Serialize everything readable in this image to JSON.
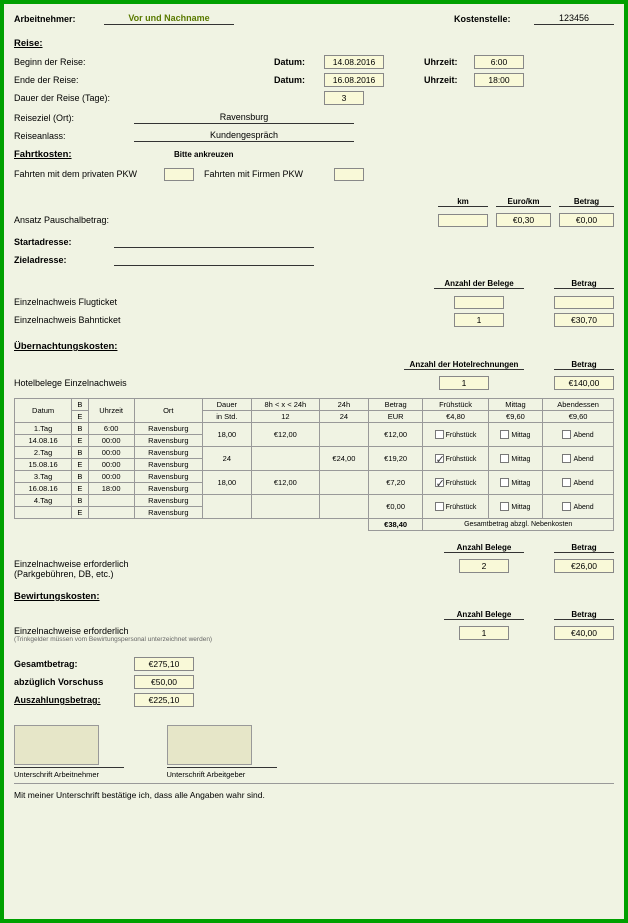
{
  "header": {
    "employee_label": "Arbeitnehmer:",
    "employee_name": "Vor und Nachname",
    "costcenter_label": "Kostenstelle:",
    "costcenter_value": "123456"
  },
  "reise": {
    "section": "Reise:",
    "begin_label": "Beginn der Reise:",
    "end_label": "Ende der Reise:",
    "datum_label": "Datum:",
    "uhrzeit_label": "Uhrzeit:",
    "begin_date": "14.08.2016",
    "begin_time": "6:00",
    "end_date": "16.08.2016",
    "end_time": "18:00",
    "duration_label": "Dauer der Reise (Tage):",
    "duration_value": "3",
    "dest_label": "Reiseziel (Ort):",
    "dest_value": "Ravensburg",
    "reason_label": "Reiseanlass:",
    "reason_value": "Kundengespräch"
  },
  "fahrt": {
    "section": "Fahrtkosten:",
    "bitte": "Bitte ankreuzen",
    "privat": "Fahrten mit dem privaten PKW",
    "firma": "Fahrten mit Firmen PKW",
    "km_h": "km",
    "eurokm_h": "Euro/km",
    "betrag_h": "Betrag",
    "pauschal": "Ansatz Pauschalbetrag:",
    "km_v": "",
    "eurokm_v": "€0,30",
    "betrag_v": "€0,00",
    "start": "Startadresse:",
    "ziel": "Zieladresse:",
    "belege_h": "Anzahl der Belege",
    "flug": "Einzelnachweis Flugticket",
    "flug_n": "",
    "flug_b": "",
    "bahn": "Einzelnachweis Bahnticket",
    "bahn_n": "1",
    "bahn_b": "€30,70"
  },
  "uebern": {
    "section": "Übernachtungskosten:",
    "hotel_label": "Hotelbelege Einzelnachweis",
    "rech_h": "Anzahl der Hotelrechnungen",
    "betrag_h": "Betrag",
    "rech_v": "1",
    "betrag_v": "€140,00"
  },
  "table": {
    "headers": {
      "datum": "Datum",
      "be": "B",
      "be2": "E",
      "uhrzeit": "Uhrzeit",
      "ort": "Ort",
      "dauer": "Dauer",
      "b8": "8h < x < 24h",
      "b24": "24h",
      "betrag": "Betrag",
      "fruh": "Frühstück",
      "mittag": "Mittag",
      "abend": "Abendessen",
      "instd": "in Std.",
      "v12": "12",
      "v24": "24",
      "eur": "EUR",
      "e480": "€4,80",
      "e960a": "€9,60",
      "e960b": "€9,60"
    },
    "rows": [
      {
        "tag": "1.Tag",
        "date": "14.08.16",
        "b": "6:00",
        "e": "00:00",
        "ortb": "Ravensburg",
        "orte": "Ravensburg",
        "dauer": "18,00",
        "c8": "€12,00",
        "c24": "",
        "betrag": "€12,00",
        "f": false,
        "m": false,
        "a": false,
        "ml": "Mittag",
        "al": "Abend"
      },
      {
        "tag": "2.Tag",
        "date": "15.08.16",
        "b": "00:00",
        "e": "00:00",
        "ortb": "Ravensburg",
        "orte": "Ravensburg",
        "dauer": "24",
        "c8": "",
        "c24": "€24,00",
        "betrag": "€19,20",
        "f": true,
        "m": false,
        "a": false,
        "ml": "Mittag",
        "al": "Abend"
      },
      {
        "tag": "3.Tag",
        "date": "16.08.16",
        "b": "00:00",
        "e": "18:00",
        "ortb": "Ravensburg",
        "orte": "Ravensburg",
        "dauer": "18,00",
        "c8": "€12,00",
        "c24": "",
        "betrag": "€7,20",
        "f": true,
        "m": false,
        "a": false,
        "ml": "Mittag",
        "al": "Abend"
      },
      {
        "tag": "4.Tag",
        "date": "",
        "b": "",
        "e": "",
        "ortb": "Ravensburg",
        "orte": "Ravensburg",
        "dauer": "",
        "c8": "",
        "c24": "",
        "betrag": "€0,00",
        "f": false,
        "m": false,
        "a": false,
        "ml": "Mittag",
        "al": "Abend"
      }
    ],
    "mealfl": "Frühstück",
    "sum": "€38,40",
    "sumlabel": "Gesamtbetrag abzgl. Nebenkosten"
  },
  "extras": {
    "einzel_label": "Einzelnachweise erforderlich",
    "einzel_sub": "(Parkgebühren, DB, etc.)",
    "anzahl_h": "Anzahl  Belege",
    "betrag_h": "Betrag",
    "park_n": "2",
    "park_b": "€26,00",
    "bewirt_section": "Bewirtungskosten:",
    "bewirt_label": "Einzelnachweise erforderlich",
    "bewirt_sub": "(Trinkgelder müssen vom Bewirtungspersonal unterzeichnet werden)",
    "bewirt_n": "1",
    "bewirt_b": "€40,00"
  },
  "totals": {
    "gesamt_l": "Gesamtbetrag:",
    "gesamt_v": "€275,10",
    "vorschuss_l": "abzüglich Vorschuss",
    "vorschuss_v": "€50,00",
    "auszahl_l": "Auszahlungsbetrag:",
    "auszahl_v": "€225,10"
  },
  "sig": {
    "an": "Unterschrift Arbeitnehmer",
    "ag": "Unterschrift Arbeitgeber",
    "stmt": "Mit meiner Unterschrift bestätige ich, dass alle Angaben wahr sind."
  }
}
